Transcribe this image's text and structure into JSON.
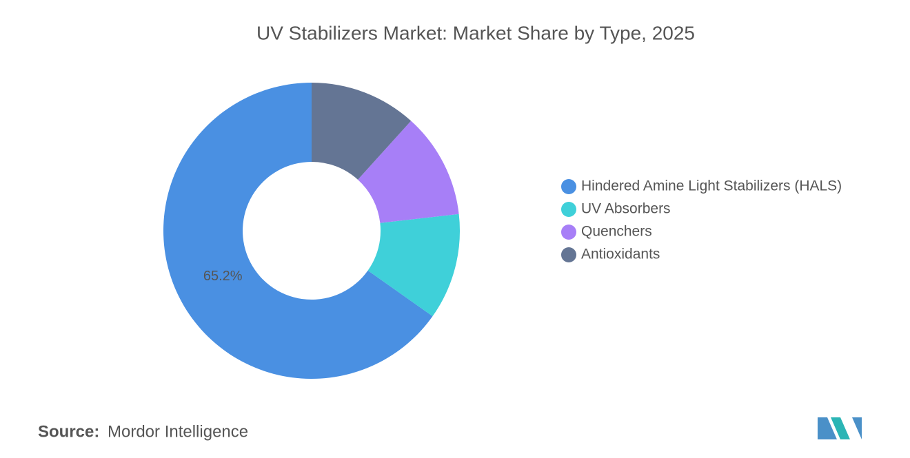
{
  "chart_data": {
    "type": "donut",
    "title": "UV Stabilizers Market: Market Share by Type, 2025",
    "categories": [
      "Hindered Amine Light Stabilizers (HALS)",
      "UV Absorbers",
      "Quenchers",
      "Antioxidants"
    ],
    "values": [
      65.2,
      11.6,
      11.5,
      11.7
    ],
    "value_labels": [
      "65.2%",
      null,
      null,
      null
    ],
    "colors": [
      "#4a90e2",
      "#3fd0d9",
      "#a77ff7",
      "#647594"
    ],
    "legend": "right"
  },
  "source": {
    "label": "Source:",
    "text": "Mordor Intelligence"
  }
}
